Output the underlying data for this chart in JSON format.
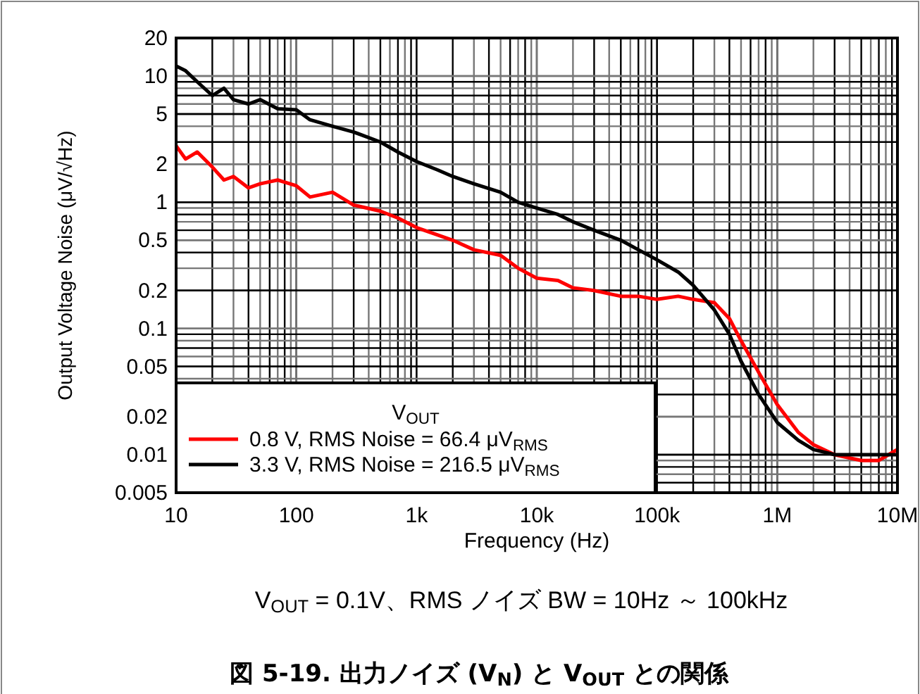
{
  "chart_data": {
    "type": "line",
    "title": "図 5-19. 出力ノイズ (V$_{N}$) と V$_{OUT}$ との関係",
    "xlabel": "Frequency (Hz)",
    "ylabel": "Output Voltage Noise (μV/√Hz)",
    "legend_title": "V$_{OUT}$",
    "annotations": [
      "V$_{OUT}$ = 0.1V、RMS ノイズ BW = 10Hz ～ 100kHz"
    ],
    "log": "xy",
    "grid": true,
    "legend": "bottom left",
    "line_style": "solid",
    "marker": "none",
    "xlim": [
      10,
      10000000
    ],
    "xticks": [
      10,
      100,
      {
        "value": 1000,
        "label": "1k"
      },
      {
        "value": 10000,
        "label": "10k"
      },
      {
        "value": 100000,
        "label": "100k"
      },
      {
        "value": 1000000,
        "label": "1M"
      },
      {
        "value": 10000000,
        "label": "10M"
      }
    ],
    "ylim": [
      0.005,
      20
    ],
    "yticks": [
      0.005,
      0.01,
      0.02,
      0.05,
      0.1,
      0.2,
      0.5,
      1,
      2,
      5,
      10,
      20
    ],
    "series": [
      {
        "name": "0.8 V, RMS Noise = 66.4 μV$_{RMS}$",
        "color": "#ff0000",
        "x": [
          10,
          12,
          15,
          20,
          25,
          30,
          40,
          50,
          70,
          100,
          130,
          200,
          300,
          500,
          700,
          1000,
          1500,
          2000,
          3000,
          5000,
          7000,
          10000,
          15000,
          20000,
          30000,
          50000,
          70000,
          100000,
          150000,
          200000,
          300000,
          400000,
          500000,
          700000,
          1000000,
          1500000,
          2000000,
          3000000,
          5000000,
          7000000,
          10000000
        ],
        "values": [
          2.8,
          2.2,
          2.5,
          1.9,
          1.5,
          1.6,
          1.3,
          1.4,
          1.5,
          1.35,
          1.1,
          1.2,
          0.95,
          0.85,
          0.75,
          0.63,
          0.55,
          0.5,
          0.42,
          0.38,
          0.3,
          0.25,
          0.24,
          0.21,
          0.2,
          0.18,
          0.18,
          0.17,
          0.18,
          0.17,
          0.16,
          0.12,
          0.08,
          0.045,
          0.025,
          0.015,
          0.012,
          0.01,
          0.009,
          0.009,
          0.011
        ]
      },
      {
        "name": "3.3 V, RMS Noise = 216.5 μV$_{RMS}$",
        "color": "#000000",
        "x": [
          10,
          12,
          15,
          20,
          25,
          30,
          40,
          50,
          70,
          100,
          130,
          200,
          300,
          500,
          700,
          1000,
          1500,
          2000,
          3000,
          5000,
          7000,
          10000,
          15000,
          20000,
          30000,
          50000,
          70000,
          100000,
          150000,
          200000,
          300000,
          400000,
          500000,
          700000,
          1000000,
          1500000,
          2000000,
          3000000,
          5000000,
          7000000,
          10000000
        ],
        "values": [
          12,
          11,
          9,
          7,
          8,
          6.5,
          6,
          6.5,
          5.5,
          5.4,
          4.5,
          4,
          3.6,
          3,
          2.5,
          2.1,
          1.8,
          1.6,
          1.4,
          1.2,
          1,
          0.9,
          0.8,
          0.7,
          0.6,
          0.5,
          0.42,
          0.35,
          0.28,
          0.22,
          0.14,
          0.09,
          0.055,
          0.03,
          0.018,
          0.013,
          0.011,
          0.01,
          0.01,
          0.01,
          0.01
        ]
      }
    ]
  }
}
